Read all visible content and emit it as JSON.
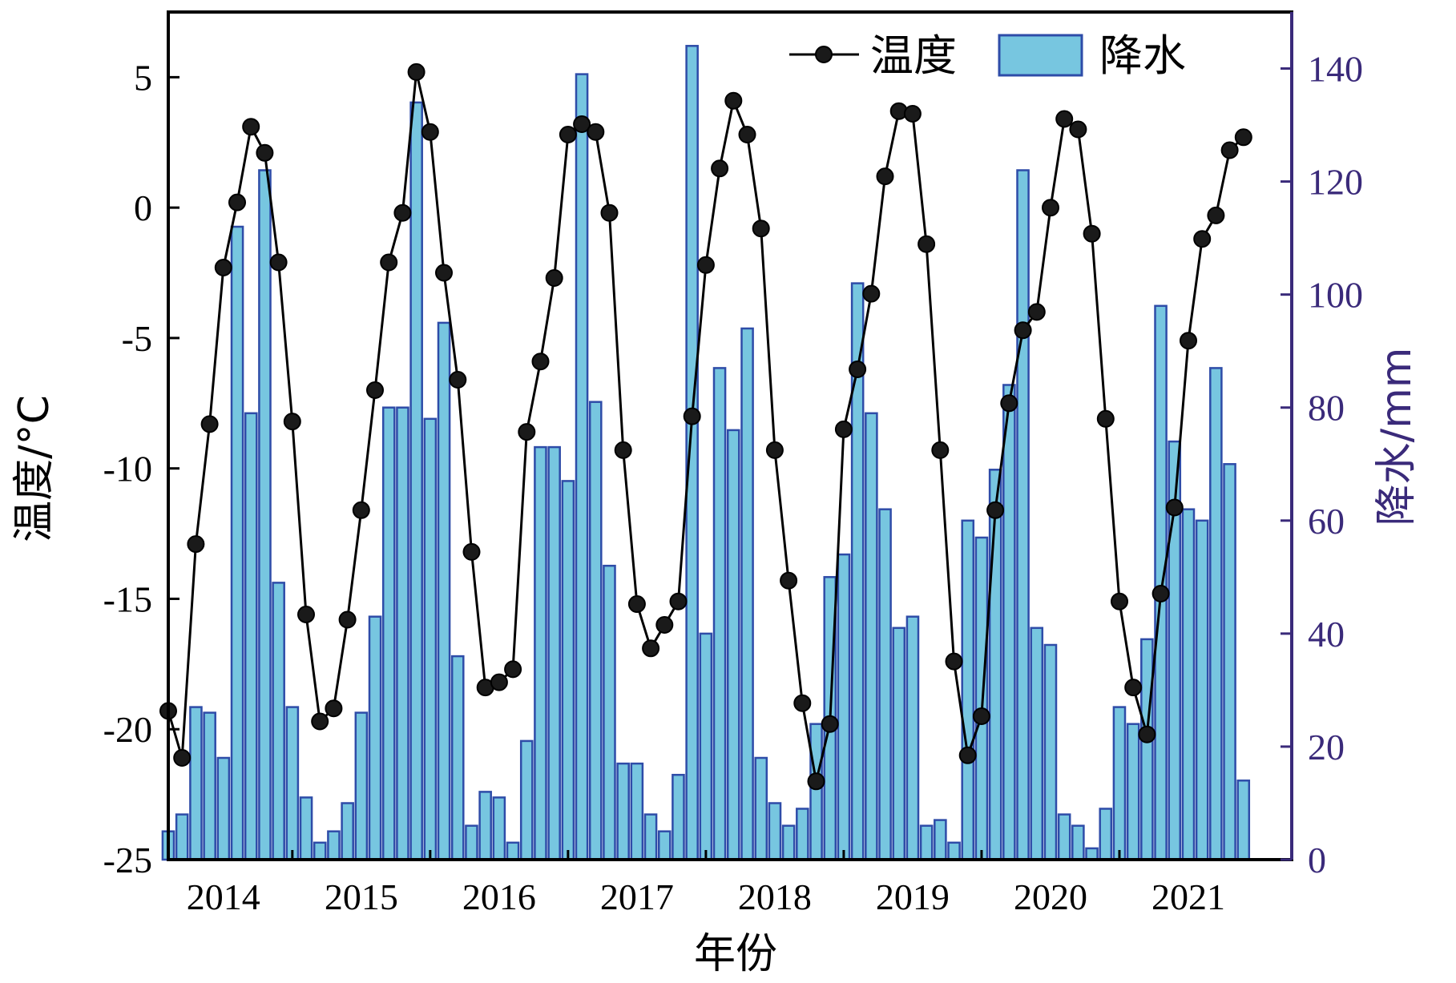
{
  "chart_data": {
    "type": "bar+line",
    "xlabel": "年份",
    "ylabel_left": "温度/°C",
    "ylabel_right": "降水/mm",
    "years": [
      "2014",
      "2015",
      "2016",
      "2017",
      "2018",
      "2019",
      "2020",
      "2021"
    ],
    "xlim": [
      2013.6,
      2021.75
    ],
    "ylim_left": [
      -25,
      7.5
    ],
    "ylim_right": [
      0,
      150
    ],
    "yticks_left": [
      "5",
      "0",
      "-5",
      "-10",
      "-15",
      "-20",
      "-25"
    ],
    "yticks_right": [
      "140",
      "120",
      "100",
      "80",
      "60",
      "40",
      "20",
      "0"
    ],
    "legend": {
      "line": "温度",
      "bar": "降水",
      "position": "top-right"
    },
    "colors": {
      "bar_fill": "#77C6E0",
      "bar_edge": "#2E4CA8",
      "line": "#000000",
      "marker": "#1a1a1a",
      "right_axis": "#3a2a7a",
      "frame": "#000000"
    },
    "series": [
      {
        "name": "温度",
        "kind": "line",
        "x": [
          2013.6,
          2013.7,
          2013.8,
          2013.9,
          2014.0,
          2014.1,
          2014.2,
          2014.3,
          2014.4,
          2014.5,
          2014.6,
          2014.7,
          2014.8,
          2014.9,
          2015.0,
          2015.1,
          2015.2,
          2015.3,
          2015.4,
          2015.5,
          2015.6,
          2015.7,
          2015.8,
          2015.9,
          2016.0,
          2016.1,
          2016.2,
          2016.3,
          2016.4,
          2016.5,
          2016.6,
          2016.7,
          2016.8,
          2016.9,
          2017.0,
          2017.1,
          2017.2,
          2017.3,
          2017.4,
          2017.5,
          2017.6,
          2017.7,
          2017.8,
          2017.9,
          2018.0,
          2018.1,
          2018.2,
          2018.3,
          2018.4,
          2018.5,
          2018.6,
          2018.7,
          2018.8,
          2018.9,
          2019.0,
          2019.1,
          2019.2,
          2019.3,
          2019.4,
          2019.5,
          2019.6,
          2019.7,
          2019.8,
          2019.9,
          2020.0,
          2020.1,
          2020.2,
          2020.3,
          2020.4,
          2020.5,
          2020.6,
          2020.7,
          2020.8,
          2020.9,
          2021.0,
          2021.1,
          2021.2,
          2021.3,
          2021.4
        ],
        "values": [
          -19.3,
          -21.1,
          -12.9,
          -8.3,
          -2.3,
          0.2,
          3.1,
          2.1,
          -2.1,
          -8.2,
          -15.6,
          -19.7,
          -19.2,
          -15.8,
          -11.6,
          -7.0,
          -2.1,
          -0.2,
          5.2,
          2.9,
          -2.5,
          -6.6,
          -13.2,
          -18.4,
          -18.2,
          -17.7,
          -8.6,
          -5.9,
          -2.7,
          2.8,
          3.2,
          2.9,
          -0.2,
          -9.3,
          -15.2,
          -16.9,
          -16.0,
          -15.1,
          -8.0,
          -2.2,
          1.5,
          4.1,
          2.8,
          -0.8,
          -9.3,
          -14.3,
          -19.0,
          -22.0,
          -19.8,
          -8.5,
          -6.2,
          -3.3,
          1.2,
          3.7,
          3.6,
          -1.4,
          -9.3,
          -17.4,
          -21.0,
          -19.5,
          -11.6,
          -7.5,
          -4.7,
          -4.0,
          0.0,
          3.4,
          3.0,
          -1.0,
          -8.1,
          -15.1,
          -18.4,
          -20.2,
          -14.8,
          -11.5,
          -5.1,
          -1.2,
          -0.3,
          2.2,
          2.7
        ]
      },
      {
        "name": "降水",
        "kind": "bar",
        "x": [
          2013.6,
          2013.7,
          2013.8,
          2013.9,
          2014.0,
          2014.1,
          2014.2,
          2014.3,
          2014.4,
          2014.5,
          2014.6,
          2014.7,
          2014.8,
          2014.9,
          2015.0,
          2015.1,
          2015.2,
          2015.3,
          2015.4,
          2015.5,
          2015.6,
          2015.7,
          2015.8,
          2015.9,
          2016.0,
          2016.1,
          2016.2,
          2016.3,
          2016.4,
          2016.5,
          2016.6,
          2016.7,
          2016.8,
          2016.9,
          2017.0,
          2017.1,
          2017.2,
          2017.3,
          2017.4,
          2017.5,
          2017.6,
          2017.7,
          2017.8,
          2017.9,
          2018.0,
          2018.1,
          2018.2,
          2018.3,
          2018.4,
          2018.5,
          2018.6,
          2018.7,
          2018.8,
          2018.9,
          2019.0,
          2019.1,
          2019.2,
          2019.3,
          2019.4,
          2019.5,
          2019.6,
          2019.7,
          2019.8,
          2019.9,
          2020.0,
          2020.1,
          2020.2,
          2020.3,
          2020.4,
          2020.5,
          2020.6,
          2020.7,
          2020.8,
          2020.9,
          2021.0,
          2021.1,
          2021.2,
          2021.3,
          2021.4
        ],
        "values": [
          5,
          8,
          27,
          26,
          18,
          112,
          79,
          122,
          49,
          27,
          11,
          3,
          5,
          10,
          26,
          43,
          80,
          80,
          134,
          78,
          95,
          36,
          6,
          12,
          11,
          3,
          21,
          73,
          73,
          67,
          139,
          81,
          52,
          17,
          17,
          8,
          5,
          15,
          144,
          40,
          87,
          76,
          94,
          18,
          10,
          6,
          9,
          24,
          50,
          54,
          102,
          79,
          62,
          41,
          43,
          6,
          7,
          3,
          60,
          57,
          69,
          84,
          122,
          41,
          38,
          8,
          6,
          2,
          9,
          27,
          24,
          39,
          98,
          74,
          62,
          60,
          87,
          70,
          14
        ]
      }
    ]
  }
}
